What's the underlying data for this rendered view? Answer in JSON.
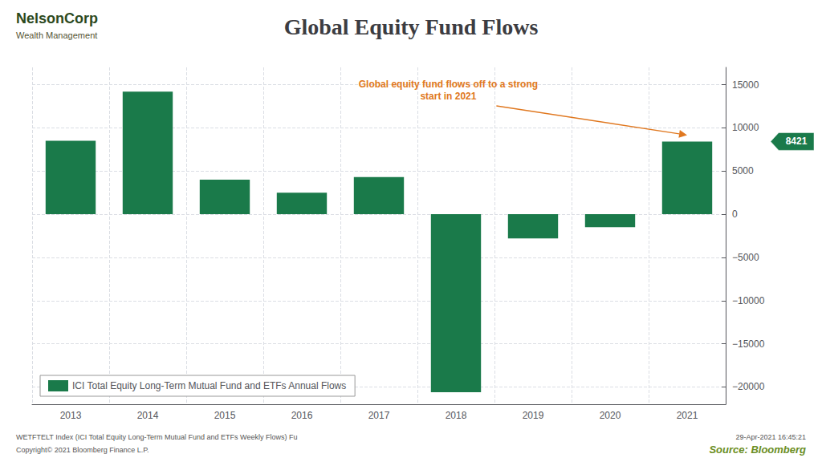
{
  "chart_data": {
    "type": "bar",
    "title": "Global Equity Fund Flows",
    "categories": [
      "2013",
      "2014",
      "2015",
      "2016",
      "2017",
      "2018",
      "2019",
      "2020",
      "2021"
    ],
    "series": [
      {
        "name": "ICI Total Equity Long-Term Mutual Fund and ETFs Annual Flows",
        "color": "#1a7a4a",
        "values": [
          8500,
          14200,
          4000,
          2500,
          4300,
          -20600,
          -2800,
          -1500,
          8421
        ]
      }
    ],
    "ylim": [
      -22000,
      17000
    ],
    "yticks": [
      {
        "value": -20000,
        "label": "−20000"
      },
      {
        "value": -15000,
        "label": "−15000"
      },
      {
        "value": -10000,
        "label": "−10000"
      },
      {
        "value": -5000,
        "label": "−5000"
      },
      0,
      5000,
      10000,
      15000
    ],
    "grid": true,
    "legend": "lower left",
    "annotations": [
      {
        "text": "8421",
        "y": 8421
      },
      {
        "text": "Global equity fund flows off to a strong\nstart in 2021",
        "color": "#e07820",
        "x": "2021"
      },
      {
        "text": "NelsonCorp"
      },
      {
        "text": "Wealth Management"
      },
      {
        "text": "WETFTELT Index (ICI Total Equity Long-Term Mutual Fund and ETFs Weekly Flows) Fu"
      },
      {
        "text": "Copyright© 2021 Bloomberg Finance L.P."
      },
      {
        "text": "29-Apr-2021 16:45:21"
      },
      {
        "text": "Source: Bloomberg",
        "color": "#6b8e23"
      }
    ]
  }
}
